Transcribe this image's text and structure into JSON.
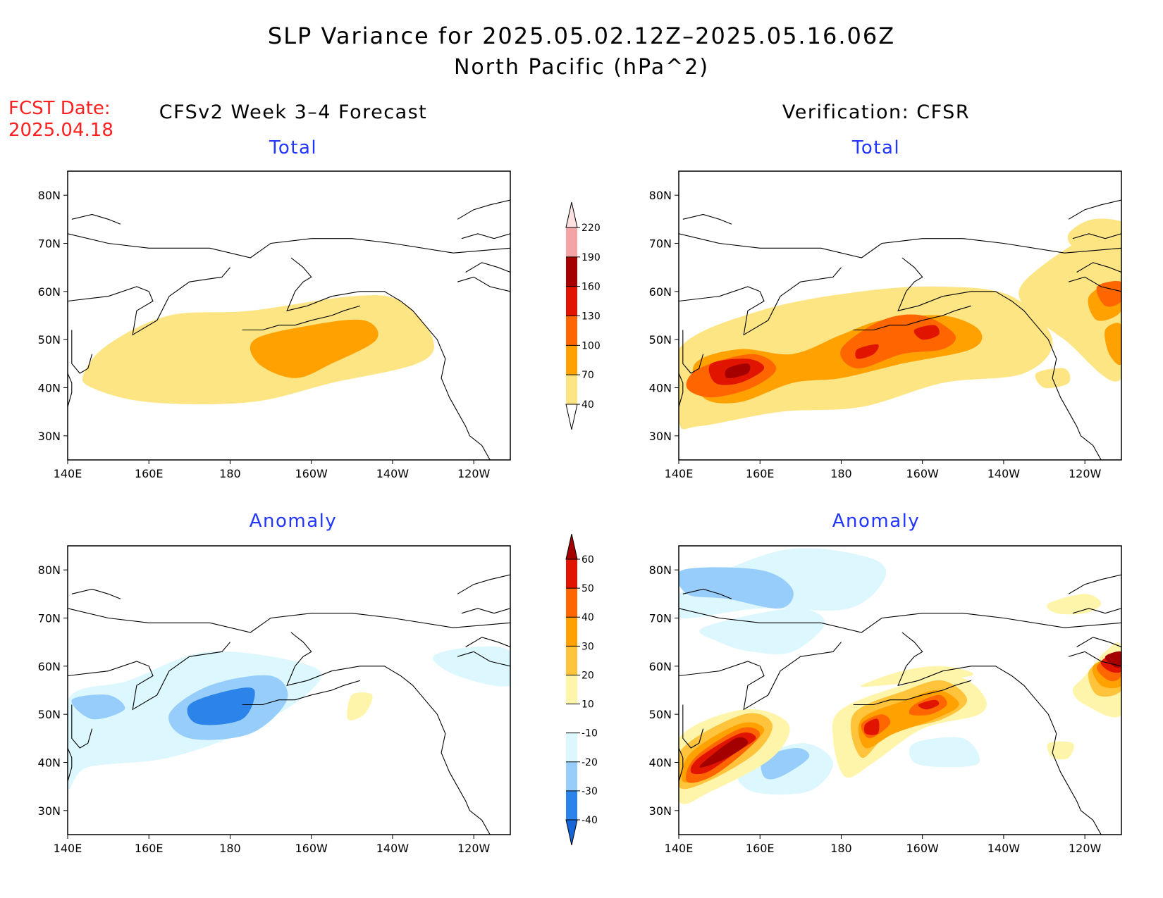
{
  "header": {
    "title_line1": "SLP Variance for 2025.05.02.12Z–2025.05.16.06Z",
    "title_line2": "North Pacific (hPa^2)",
    "fcst_label": "FCST Date:",
    "fcst_date": "2025.04.18",
    "left_column_title": "CFSv2 Week 3–4 Forecast",
    "right_column_title": "Verification: CFSR"
  },
  "panels": {
    "top_left_title": "Total",
    "top_right_title": "Total",
    "bottom_left_title": "Anomaly",
    "bottom_right_title": "Anomaly"
  },
  "axes": {
    "lat_labels": [
      "30N",
      "40N",
      "50N",
      "60N",
      "70N",
      "80N"
    ],
    "lat_values": [
      30,
      40,
      50,
      60,
      70,
      80
    ],
    "lon_labels": [
      "140E",
      "160E",
      "180",
      "160W",
      "140W",
      "120W"
    ],
    "lon_values": [
      140,
      160,
      180,
      200,
      220,
      240
    ],
    "lon_range": [
      140,
      249
    ],
    "lat_range": [
      25,
      85
    ]
  },
  "colorbar_total": {
    "labels": [
      "40",
      "70",
      "100",
      "130",
      "160",
      "190",
      "220"
    ],
    "colors": [
      "#fde583",
      "#ffa100",
      "#ff6600",
      "#e11400",
      "#a50000",
      "#f4a4a4",
      "#fde0e0"
    ]
  },
  "colorbar_anomaly": {
    "labels": [
      "-40",
      "-30",
      "-20",
      "-10",
      "10",
      "20",
      "30",
      "40",
      "50",
      "60"
    ],
    "colors": [
      "#1565d8",
      "#2c84ea",
      "#96cdfa",
      "#dcf7fe",
      "#ffffff",
      "#fff5aa",
      "#ffc33c",
      "#ffa100",
      "#ff6600",
      "#e11400",
      "#a50000"
    ]
  },
  "fields": {
    "forecast_total": [
      {
        "level": 40,
        "lon": [
          144,
          150,
          165,
          185,
          210,
          222,
          230,
          226,
          205,
          185,
          160,
          146
        ],
        "lat": [
          43,
          49,
          55,
          56,
          59,
          58,
          50,
          45,
          41,
          37,
          37,
          40
        ]
      },
      {
        "level": 70,
        "lon": [
          186,
          200,
          213,
          216,
          205,
          196,
          187
        ],
        "lat": [
          50,
          53,
          54,
          50,
          45,
          42,
          45
        ]
      }
    ],
    "verification_total": [
      {
        "level": 40,
        "lon": [
          140,
          160,
          185,
          205,
          222,
          232,
          225,
          205,
          185,
          165,
          145,
          140
        ],
        "lat": [
          48,
          56,
          60,
          61,
          59,
          50,
          43,
          41,
          36,
          35,
          32,
          33
        ]
      },
      {
        "level": 40,
        "lon": [
          225,
          242,
          249,
          249,
          235,
          226
        ],
        "lat": [
          62,
          72,
          70,
          42,
          50,
          56
        ]
      },
      {
        "level": 40,
        "lon": [
          236,
          242,
          250,
          248,
          238
        ],
        "lat": [
          72,
          75,
          74,
          69,
          69
        ]
      },
      {
        "level": 40,
        "lon": [
          228,
          235,
          236,
          230
        ],
        "lat": [
          43,
          44,
          41,
          40
        ]
      },
      {
        "level": 70,
        "lon": [
          144,
          155,
          168,
          180,
          190,
          205,
          214,
          212,
          195,
          180,
          168,
          155,
          146
        ],
        "lat": [
          45,
          48,
          47,
          51,
          54,
          55,
          52,
          48,
          45,
          42,
          41,
          37,
          38
        ]
      },
      {
        "level": 70,
        "lon": [
          241,
          248,
          249,
          243
        ],
        "lat": [
          59,
          62,
          56,
          54
        ]
      },
      {
        "level": 70,
        "lon": [
          245,
          249,
          249,
          246
        ],
        "lat": [
          52,
          53,
          45,
          47
        ]
      },
      {
        "level": 100,
        "lon": [
          145,
          158,
          164,
          158,
          148,
          142
        ],
        "lat": [
          44,
          47,
          44,
          40,
          38,
          40
        ]
      },
      {
        "level": 100,
        "lon": [
          180,
          190,
          200,
          208,
          205,
          195,
          184
        ],
        "lat": [
          48,
          54,
          55,
          51,
          48,
          47,
          44
        ]
      },
      {
        "level": 100,
        "lon": [
          243,
          249,
          249,
          245
        ],
        "lat": [
          61,
          62,
          58,
          57
        ]
      },
      {
        "level": 130,
        "lon": [
          148,
          157,
          161,
          155,
          149
        ],
        "lat": [
          45,
          46,
          44,
          41,
          41
        ]
      },
      {
        "level": 130,
        "lon": [
          184,
          189,
          188,
          184
        ],
        "lat": [
          48,
          49,
          47,
          46
        ]
      },
      {
        "level": 130,
        "lon": [
          198,
          203,
          204,
          200
        ],
        "lat": [
          52,
          53,
          51,
          50
        ]
      },
      {
        "level": 160,
        "lon": [
          152,
          157,
          157,
          152
        ],
        "lat": [
          44,
          45,
          43,
          42
        ]
      }
    ],
    "forecast_anomaly": [
      {
        "level": -10,
        "lon": [
          140,
          155,
          175,
          200,
          200,
          185,
          165,
          145,
          140
        ],
        "lat": [
          53,
          57,
          63,
          60,
          55,
          47,
          41,
          39,
          35
        ]
      },
      {
        "level": -10,
        "lon": [
          230,
          240,
          249,
          249,
          236
        ],
        "lat": [
          62,
          64,
          63,
          56,
          58
        ]
      },
      {
        "level": -20,
        "lon": [
          141,
          150,
          154,
          146
        ],
        "lat": [
          53,
          54,
          51,
          49
        ]
      },
      {
        "level": -20,
        "lon": [
          165,
          175,
          190,
          194,
          185,
          170
        ],
        "lat": [
          50,
          56,
          58,
          53,
          46,
          45
        ]
      },
      {
        "level": -30,
        "lon": [
          170,
          180,
          186,
          183,
          172
        ],
        "lat": [
          52,
          55,
          55,
          49,
          48
        ]
      },
      {
        "level": 10,
        "lon": [
          210,
          215,
          213,
          209
        ],
        "lat": [
          54,
          54,
          50,
          49
        ]
      }
    ],
    "verification_anomaly": [
      {
        "level": -10,
        "lon": [
          140,
          165,
          185,
          191,
          182,
          160,
          140
        ],
        "lat": [
          75,
          84,
          83,
          79,
          72,
          72,
          70
        ]
      },
      {
        "level": -10,
        "lon": [
          146,
          168,
          176,
          168,
          158,
          150
        ],
        "lat": [
          68,
          72,
          69,
          63,
          63,
          65
        ]
      },
      {
        "level": -10,
        "lon": [
          155,
          170,
          178,
          172,
          158
        ],
        "lat": [
          39,
          44,
          40,
          34,
          34
        ]
      },
      {
        "level": -10,
        "lon": [
          198,
          210,
          214,
          206,
          198
        ],
        "lat": [
          44,
          45,
          40,
          39,
          40
        ]
      },
      {
        "level": -20,
        "lon": [
          141,
          160,
          168,
          165,
          152,
          142
        ],
        "lat": [
          80,
          80,
          76,
          72,
          74,
          75
        ]
      },
      {
        "level": -20,
        "lon": [
          161,
          169,
          172,
          165,
          161
        ],
        "lat": [
          41,
          43,
          41,
          37,
          37
        ]
      },
      {
        "level": 10,
        "lon": [
          140,
          156,
          167,
          163,
          148,
          140
        ],
        "lat": [
          45,
          51,
          48,
          41,
          34,
          32
        ]
      },
      {
        "level": 10,
        "lon": [
          180,
          195,
          208,
          215,
          214,
          200,
          188,
          181,
          178
        ],
        "lat": [
          51,
          56,
          58,
          54,
          50,
          47,
          40,
          37,
          45
        ]
      },
      {
        "level": 10,
        "lon": [
          240,
          245,
          249,
          249,
          240,
          237
        ],
        "lat": [
          58,
          63,
          64,
          50,
          52,
          55
        ]
      },
      {
        "level": 10,
        "lon": [
          231,
          240,
          244,
          240,
          233
        ],
        "lat": [
          73,
          75,
          73,
          71,
          71
        ]
      },
      {
        "level": 10,
        "lon": [
          231,
          237,
          236,
          232
        ],
        "lat": [
          44,
          44,
          41,
          41
        ]
      },
      {
        "level": 10,
        "lon": [
          185,
          195,
          205,
          212,
          190
        ],
        "lat": [
          56,
          59,
          60,
          58,
          56
        ]
      },
      {
        "level": 20,
        "lon": [
          141,
          156,
          163,
          159,
          147,
          140
        ],
        "lat": [
          43,
          50,
          48,
          42,
          36,
          35
        ]
      },
      {
        "level": 20,
        "lon": [
          183,
          196,
          205,
          211,
          205,
          192,
          185
        ],
        "lat": [
          50,
          55,
          57,
          53,
          49,
          46,
          41
        ]
      },
      {
        "level": 20,
        "lon": [
          241,
          247,
          249,
          249,
          243
        ],
        "lat": [
          59,
          62,
          62,
          55,
          54
        ]
      },
      {
        "level": 30,
        "lon": [
          143,
          155,
          161,
          157,
          148,
          141
        ],
        "lat": [
          42,
          48,
          47,
          43,
          38,
          36
        ]
      },
      {
        "level": 30,
        "lon": [
          185,
          196,
          204,
          209,
          203,
          193,
          186
        ],
        "lat": [
          49,
          53,
          55,
          52,
          49,
          46,
          43
        ]
      },
      {
        "level": 30,
        "lon": [
          242,
          248,
          249,
          249,
          244
        ],
        "lat": [
          60,
          62,
          61,
          56,
          56
        ]
      },
      {
        "level": 40,
        "lon": [
          144,
          155,
          160,
          156,
          148,
          142
        ],
        "lat": [
          41,
          47,
          46,
          42,
          37,
          36
        ]
      },
      {
        "level": 40,
        "lon": [
          185,
          190,
          192,
          187
        ],
        "lat": [
          48,
          50,
          48,
          45
        ]
      },
      {
        "level": 40,
        "lon": [
          198,
          204,
          206,
          202,
          197
        ],
        "lat": [
          52,
          54,
          52,
          50,
          50
        ]
      },
      {
        "level": 40,
        "lon": [
          243,
          249,
          249,
          246
        ],
        "lat": [
          60,
          63,
          58,
          57
        ]
      },
      {
        "level": 50,
        "lon": [
          145,
          155,
          159,
          154,
          147,
          143
        ],
        "lat": [
          41,
          46,
          45,
          42,
          38,
          38
        ]
      },
      {
        "level": 50,
        "lon": [
          186,
          189,
          189,
          186
        ],
        "lat": [
          48,
          49,
          46,
          46
        ]
      },
      {
        "level": 50,
        "lon": [
          199,
          203,
          204,
          201
        ],
        "lat": [
          52,
          53,
          52,
          51
        ]
      },
      {
        "level": 50,
        "lon": [
          244,
          249,
          249,
          246
        ],
        "lat": [
          61,
          63,
          59,
          59
        ]
      },
      {
        "level": 60,
        "lon": [
          146,
          154,
          157,
          152,
          146
        ],
        "lat": [
          40,
          45,
          44,
          41,
          39
        ]
      },
      {
        "level": 60,
        "lon": [
          245,
          249,
          249,
          247
        ],
        "lat": [
          62,
          63,
          60,
          60
        ]
      }
    ]
  },
  "coastlines": [
    {
      "lon": [
        140,
        150,
        160,
        175,
        185,
        190,
        200,
        210,
        220,
        235,
        249
      ],
      "lat": [
        72,
        70,
        69,
        69,
        67,
        70,
        71,
        71,
        70,
        68,
        69
      ]
    },
    {
      "lon": [
        140,
        150,
        157,
        160,
        161,
        157,
        156,
        162,
        165,
        170,
        178,
        180
      ],
      "lat": [
        58,
        59,
        61,
        60,
        58,
        56,
        51,
        54,
        59,
        62,
        63,
        65
      ]
    },
    {
      "lon": [
        195,
        198,
        200,
        198,
        196,
        195,
        194,
        199,
        205,
        212,
        218,
        220,
        222,
        225,
        228,
        231,
        233,
        232,
        234,
        236,
        238,
        239,
        242,
        244,
        246
      ],
      "lat": [
        67,
        65,
        63,
        62,
        60,
        58,
        56,
        57,
        59,
        60,
        60,
        59,
        58,
        56,
        53,
        50,
        46,
        42,
        38,
        35,
        32,
        30,
        28,
        25,
        25
      ]
    },
    {
      "lon": [
        141,
        141,
        143,
        145,
        146
      ],
      "lat": [
        52,
        45,
        43,
        44,
        47
      ]
    },
    {
      "lon": [
        140,
        141,
        141,
        140
      ],
      "lat": [
        43,
        41,
        39,
        36
      ]
    },
    {
      "lon": [
        183,
        188,
        192,
        196,
        200,
        205,
        208,
        212
      ],
      "lat": [
        52,
        52,
        53,
        53,
        54,
        55,
        56,
        57
      ]
    },
    {
      "lon": [
        236,
        240,
        244,
        249
      ],
      "lat": [
        75,
        77,
        78,
        79
      ]
    },
    {
      "lon": [
        141,
        146,
        150,
        153
      ],
      "lat": [
        75,
        76,
        75,
        74
      ]
    },
    {
      "lon": [
        237,
        241,
        245,
        249
      ],
      "lat": [
        71,
        72,
        71,
        72
      ]
    },
    {
      "lon": [
        238,
        242,
        246,
        249
      ],
      "lat": [
        64,
        66,
        65,
        64
      ]
    },
    {
      "lon": [
        236,
        240,
        244,
        249
      ],
      "lat": [
        62,
        63,
        61,
        60
      ]
    }
  ]
}
